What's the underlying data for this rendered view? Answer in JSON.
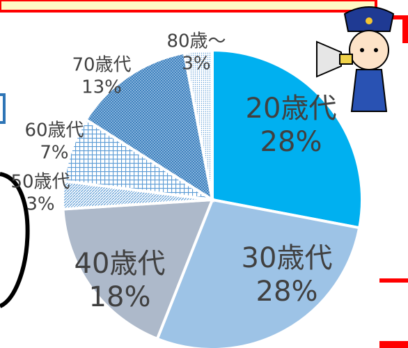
{
  "chart_data": {
    "type": "pie",
    "categories": [
      "20歳代",
      "30歳代",
      "40歳代",
      "50歳代",
      "60歳代",
      "70歳代",
      "80歳～"
    ],
    "values": [
      28,
      28,
      18,
      3,
      7,
      13,
      3
    ],
    "value_labels": [
      "28%",
      "28%",
      "18%",
      "3%",
      "7%",
      "13%",
      "3%"
    ],
    "colors": [
      "#00b0f0",
      "#9dc3e6",
      "#adb9ca",
      "#5b9bd5",
      "#5b9bd5",
      "#5b9bd5",
      "#5b9bd5"
    ],
    "patterns": [
      null,
      null,
      null,
      "diagonal",
      "grid",
      "cross",
      "dots"
    ]
  }
}
